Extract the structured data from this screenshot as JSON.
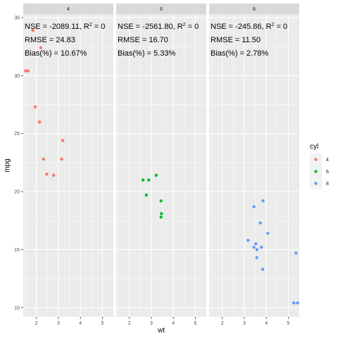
{
  "chart_data": {
    "type": "scatter",
    "xlabel": "wt",
    "ylabel": "mpg",
    "xlim": [
      1.4,
      5.5
    ],
    "ylim": [
      9.2,
      35.3
    ],
    "x_ticks": [
      "2",
      "3",
      "4",
      "5"
    ],
    "y_ticks": [
      "10",
      "15",
      "20",
      "25",
      "30",
      "35"
    ],
    "grid": true,
    "legend": {
      "title": "cyl",
      "position": "right",
      "entries": [
        "4",
        "6",
        "8"
      ]
    },
    "colors": {
      "4": "#F8766D",
      "6": "#00BA38",
      "8": "#619CFF"
    },
    "panels": [
      {
        "strip": "4",
        "annotations": [
          "NSE = -2089.11, R",
          "RMSE = 24.83",
          "Bias(%) = 10.67%"
        ],
        "points": [
          {
            "x": 2.32,
            "y": 22.8
          },
          {
            "x": 3.19,
            "y": 24.4
          },
          {
            "x": 3.15,
            "y": 22.8
          },
          {
            "x": 2.2,
            "y": 32.4
          },
          {
            "x": 1.62,
            "y": 30.4
          },
          {
            "x": 1.84,
            "y": 33.9
          },
          {
            "x": 2.47,
            "y": 21.5
          },
          {
            "x": 1.94,
            "y": 27.3
          },
          {
            "x": 2.14,
            "y": 26.0
          },
          {
            "x": 1.51,
            "y": 30.4
          },
          {
            "x": 2.78,
            "y": 21.4
          }
        ]
      },
      {
        "strip": "6",
        "annotations": [
          "NSE = -2561.80, R",
          "RMSE = 16.70",
          "Bias(%) = 5.33%"
        ],
        "points": [
          {
            "x": 2.62,
            "y": 21.0
          },
          {
            "x": 2.88,
            "y": 21.0
          },
          {
            "x": 3.22,
            "y": 21.4
          },
          {
            "x": 3.46,
            "y": 18.1
          },
          {
            "x": 3.44,
            "y": 19.2
          },
          {
            "x": 3.44,
            "y": 17.8
          },
          {
            "x": 2.77,
            "y": 19.7
          }
        ]
      },
      {
        "strip": "8",
        "annotations": [
          "NSE = -245.86, R",
          "RMSE = 11.50",
          "Bias(%) = 2.78%"
        ],
        "points": [
          {
            "x": 3.44,
            "y": 18.7
          },
          {
            "x": 3.57,
            "y": 14.3
          },
          {
            "x": 4.07,
            "y": 16.4
          },
          {
            "x": 3.73,
            "y": 17.3
          },
          {
            "x": 3.78,
            "y": 15.2
          },
          {
            "x": 5.25,
            "y": 10.4
          },
          {
            "x": 5.42,
            "y": 10.4
          },
          {
            "x": 5.35,
            "y": 14.7
          },
          {
            "x": 3.52,
            "y": 15.5
          },
          {
            "x": 3.44,
            "y": 15.2
          },
          {
            "x": 3.84,
            "y": 13.3
          },
          {
            "x": 3.85,
            "y": 19.2
          },
          {
            "x": 3.17,
            "y": 15.8
          },
          {
            "x": 3.57,
            "y": 15.0
          }
        ]
      }
    ],
    "annotation_r2_superscript": "2",
    "annotation_r2_tail": " = 0"
  }
}
